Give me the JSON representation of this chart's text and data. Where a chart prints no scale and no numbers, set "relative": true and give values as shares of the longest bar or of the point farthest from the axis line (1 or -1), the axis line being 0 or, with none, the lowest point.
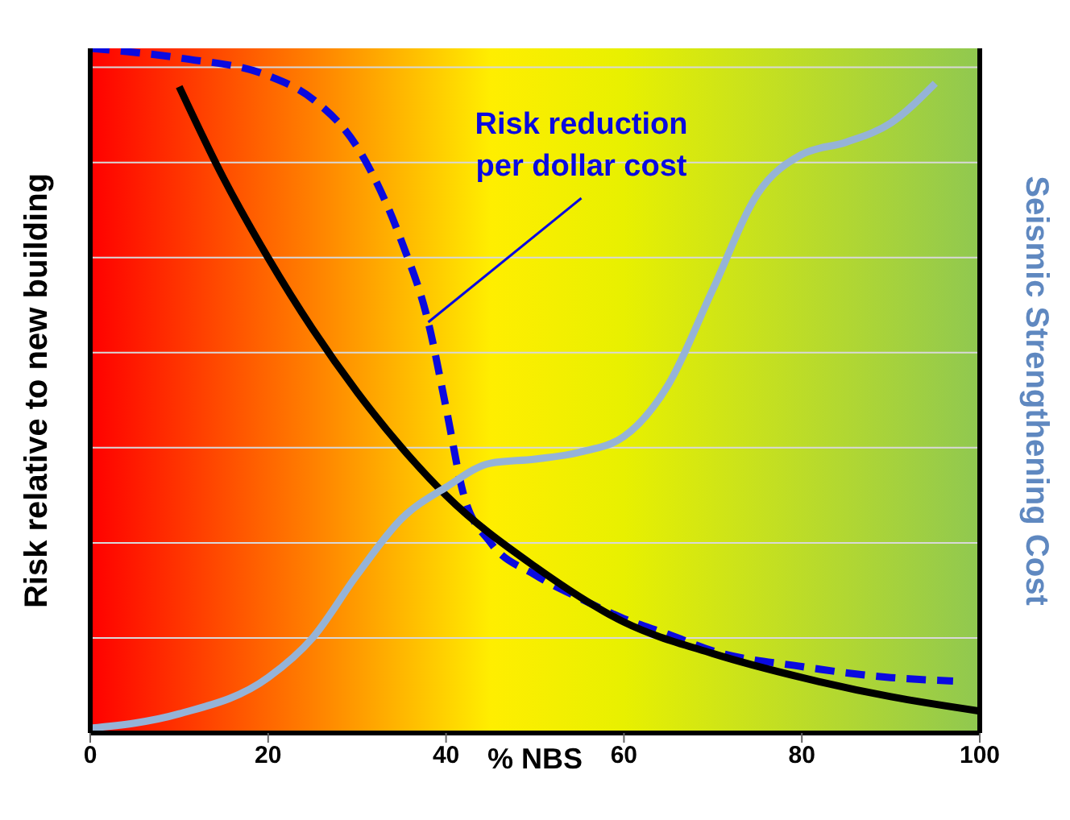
{
  "chart_data": {
    "type": "line",
    "relative": true,
    "xlabel": "% NBS",
    "ylabel": "Risk relative to new building",
    "y2label": "Seismic Strengthening Cost",
    "xlim": [
      0,
      100
    ],
    "xticks": [
      0,
      20,
      40,
      60,
      80,
      100
    ],
    "grid": "y",
    "marker": "none",
    "annotations": [
      {
        "text": "Risk reduction per dollar cost",
        "x": 38,
        "y": 0.6
      }
    ],
    "series": [
      {
        "color": "#0a0ae0",
        "line_style": "dashed",
        "x": [
          0,
          10,
          20,
          25,
          30,
          35,
          38,
          40,
          42,
          45,
          50,
          55,
          60,
          65,
          70,
          80,
          90,
          97
        ],
        "values": [
          1.0,
          0.986,
          0.96,
          0.926,
          0.856,
          0.718,
          0.6,
          0.475,
          0.347,
          0.278,
          0.231,
          0.197,
          0.167,
          0.144,
          0.12,
          0.097,
          0.081,
          0.076
        ]
      },
      {
        "color": "#000000",
        "line_style": "solid",
        "x": [
          10,
          15,
          20,
          25,
          30,
          35,
          40,
          50,
          60,
          70,
          80,
          90,
          100
        ],
        "values": [
          0.944,
          0.81,
          0.694,
          0.59,
          0.498,
          0.417,
          0.347,
          0.243,
          0.162,
          0.116,
          0.081,
          0.053,
          0.032
        ]
      },
      {
        "color": "#95b3d7",
        "line_style": "solid",
        "x": [
          0,
          10,
          20,
          25,
          30,
          35,
          40,
          45,
          50,
          55,
          60,
          65,
          70,
          75,
          80,
          85,
          90,
          95
        ],
        "values": [
          0.007,
          0.028,
          0.081,
          0.139,
          0.231,
          0.313,
          0.359,
          0.394,
          0.4,
          0.41,
          0.433,
          0.509,
          0.648,
          0.787,
          0.845,
          0.863,
          0.891,
          0.949
        ]
      }
    ]
  }
}
